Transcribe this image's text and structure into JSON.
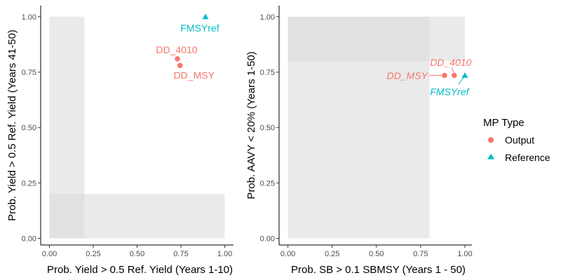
{
  "colors": {
    "output": "#F8766D",
    "reference": "#00BFC4",
    "shade": "#d9d9d9",
    "axis": "#000000",
    "tick_text": "#4d4d4d"
  },
  "legend": {
    "title": "MP Type",
    "items": [
      {
        "label": "Output",
        "shape": "circle",
        "color_key": "output"
      },
      {
        "label": "Reference",
        "shape": "triangle",
        "color_key": "reference"
      }
    ]
  },
  "chart_data": [
    {
      "type": "scatter",
      "xlabel": "Prob. Yield > 0.5 Ref. Yield (Years 1-10)",
      "ylabel": "Prob. Yield > 0.5 Ref. Yield (Years 41-50)",
      "xlim": [
        -0.05,
        1.05
      ],
      "ylim": [
        -0.03,
        1.05
      ],
      "xticks": [
        0,
        0.25,
        0.5,
        0.75,
        1
      ],
      "xtick_labels": [
        "0.00",
        "0.25",
        "0.50",
        "0.75",
        "1.00"
      ],
      "yticks": [
        0,
        0.25,
        0.5,
        0.75,
        1
      ],
      "ytick_labels": [
        "0.00",
        "0.25",
        "0.50",
        "0.75",
        "1.00"
      ],
      "shaded_regions": [
        {
          "x": [
            0,
            0.2
          ],
          "y": [
            0,
            1
          ]
        },
        {
          "x": [
            0,
            1
          ],
          "y": [
            0,
            0.2
          ]
        }
      ],
      "grid": false,
      "label_style": "normal",
      "points": [
        {
          "label": "DD_4010",
          "x": 0.73,
          "y": 0.81,
          "type": "output",
          "label_pos": "above-left"
        },
        {
          "label": "DD_MSY",
          "x": 0.745,
          "y": 0.78,
          "type": "output",
          "label_pos": "below-right"
        },
        {
          "label": "FMSYref",
          "x": 0.89,
          "y": 1.0,
          "type": "reference",
          "label_pos": "below-left"
        }
      ]
    },
    {
      "type": "scatter",
      "xlabel": "Prob. SB > 0.1 SBMSY (Years 1 - 50)",
      "ylabel": "Prob. AAVY < 20% (Years 1-50)",
      "xlim": [
        -0.05,
        1.04
      ],
      "ylim": [
        -0.03,
        1.05
      ],
      "xticks": [
        0,
        0.25,
        0.5,
        0.75,
        1
      ],
      "xtick_labels": [
        "0.00",
        "0.25",
        "0.50",
        "0.75",
        "1.00"
      ],
      "yticks": [
        0,
        0.25,
        0.5,
        0.75,
        1
      ],
      "ytick_labels": [
        "0.00",
        "0.25",
        "0.50",
        "0.75",
        "1.00"
      ],
      "shaded_regions": [
        {
          "x": [
            0,
            1
          ],
          "y": [
            0.8,
            1
          ]
        },
        {
          "x": [
            0,
            0.8
          ],
          "y": [
            0,
            1
          ]
        }
      ],
      "grid": false,
      "label_style": "italic",
      "points": [
        {
          "label": "DD_MSY",
          "x": 0.885,
          "y": 0.735,
          "type": "output",
          "label_pos": "left"
        },
        {
          "label": "DD_4010",
          "x": 0.94,
          "y": 0.735,
          "type": "output",
          "label_pos": "above"
        },
        {
          "label": "FMSYref",
          "x": 1.0,
          "y": 0.735,
          "type": "reference",
          "label_pos": "below-left"
        }
      ]
    }
  ]
}
